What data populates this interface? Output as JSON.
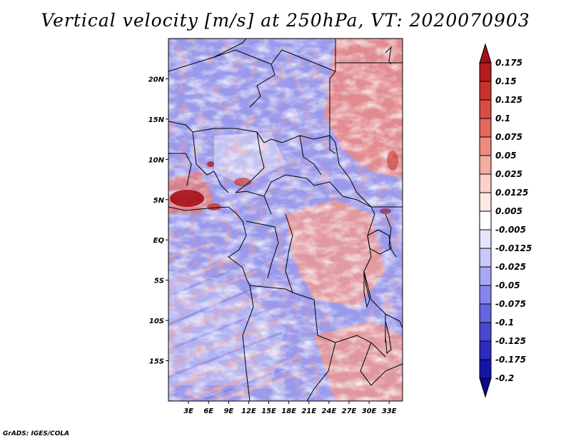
{
  "title": "Vertical velocity [m/s] at 250hPa, VT: 2020070903",
  "footer": "GrADS: IGES/COLA",
  "map": {
    "lon_range": [
      0,
      35
    ],
    "lat_range": [
      -20,
      25
    ],
    "lat_ticks": [
      "20N",
      "15N",
      "10N",
      "5N",
      "EQ",
      "5S",
      "10S",
      "15S"
    ],
    "lat_tick_values": [
      20,
      15,
      10,
      5,
      0,
      -5,
      -10,
      -15
    ],
    "lon_ticks": [
      "3E",
      "6E",
      "9E",
      "12E",
      "15E",
      "18E",
      "21E",
      "24E",
      "27E",
      "30E",
      "33E"
    ],
    "lon_tick_values": [
      3,
      6,
      9,
      12,
      15,
      18,
      21,
      24,
      27,
      30,
      33
    ]
  },
  "colorbar": {
    "labels": [
      "0.175",
      "0.15",
      "0.125",
      "0.1",
      "0.075",
      "0.05",
      "0.025",
      "0.0125",
      "0.005",
      "-0.005",
      "-0.0125",
      "-0.025",
      "-0.05",
      "-0.075",
      "-0.1",
      "-0.125",
      "-0.175",
      "-0.2"
    ],
    "colors": [
      "#a50f15",
      "#b51a20",
      "#c8322e",
      "#da4b43",
      "#e5685e",
      "#ee8a80",
      "#f5aca3",
      "#fbd0ca",
      "#fde8e4",
      "#ffffff",
      "#e4e4fc",
      "#c8c8f8",
      "#a8a8f2",
      "#8686ea",
      "#6565e0",
      "#4848d2",
      "#2c2cbf",
      "#1414a8",
      "#0a0a8a"
    ]
  }
}
